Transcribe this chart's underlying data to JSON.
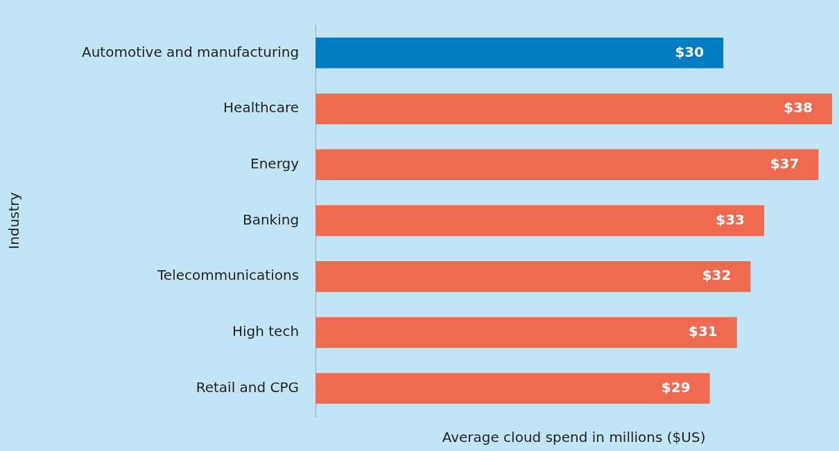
{
  "chart_data": {
    "type": "bar",
    "orientation": "horizontal",
    "xlabel": "Average cloud spend in millions ($US)",
    "ylabel": "Industry",
    "categories": [
      "Automotive and manufacturing",
      "Healthcare",
      "Energy",
      "Banking",
      "Telecommunications",
      "High tech",
      "Retail and CPG"
    ],
    "values": [
      30,
      38,
      37,
      33,
      32,
      31,
      29
    ],
    "colors": [
      "#007dc3",
      "#f06a50",
      "#f06a50",
      "#f06a50",
      "#f06a50",
      "#f06a50",
      "#f06a50"
    ],
    "value_labels": [
      "$30",
      "$38",
      "$37",
      "$33",
      "$32",
      "$31",
      "$29"
    ],
    "xlim": [
      0,
      38
    ],
    "grid": false,
    "legend": false,
    "tick_labels": "y"
  }
}
